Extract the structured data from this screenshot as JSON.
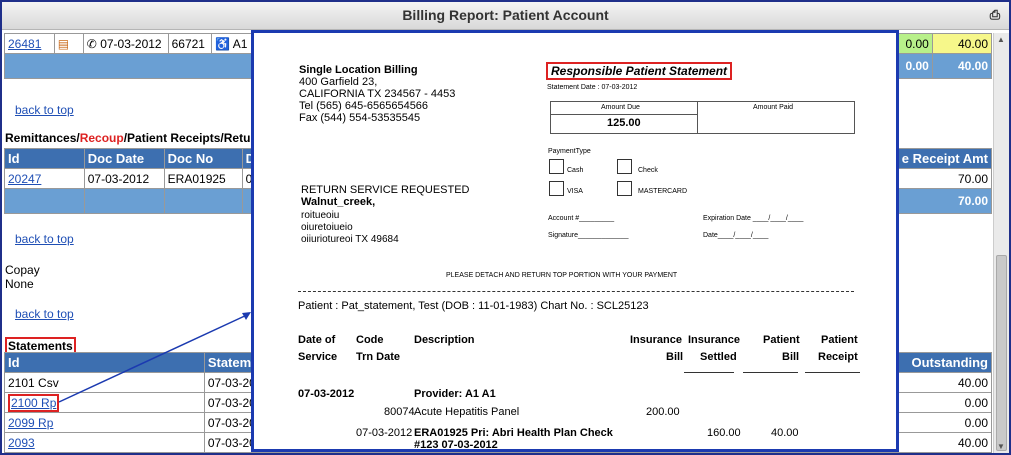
{
  "title": "Billing Report: Patient Account",
  "top_row": {
    "id": "26481",
    "date": "07-03-2012",
    "code": "66721",
    "provider_prefix": "A1",
    "green_val": "0.00",
    "yellow_val": "40.00",
    "total_left": "0.00",
    "total_right": "40.00"
  },
  "back_to_top": "back to top",
  "remittances": {
    "title_parts": [
      "Remittances/",
      "Recoup",
      "/Patient Receipts/Retur"
    ],
    "headers": [
      "Id",
      "Doc Date",
      "Doc No",
      "D",
      "e Receipt Amt"
    ],
    "row": {
      "id": "20247",
      "doc_date": "07-03-2012",
      "doc_no": "ERA01925",
      "d": "0",
      "amt": "70.00"
    },
    "total": "70.00"
  },
  "copay": {
    "title": "Copay",
    "value": "None"
  },
  "statements": {
    "title": "Statements",
    "headers": [
      "Id",
      "Statem",
      "Outstanding"
    ],
    "rows": [
      {
        "id": "2101 Csv",
        "date": "07-03-20",
        "outstanding": "40.00"
      },
      {
        "id": "2100 Rp",
        "date": "07-03-20",
        "outstanding": "0.00"
      },
      {
        "id": "2099 Rp",
        "date": "07-03-20",
        "outstanding": "0.00"
      },
      {
        "id": "2093",
        "date": "07-03-20",
        "outstanding": "40.00"
      }
    ]
  },
  "stmt": {
    "practice_name": "Single Location Billing",
    "addr1": "400 Garfield 23,",
    "addr2": "CALIFORNIA TX 234567 - 4453",
    "tel": "Tel    (565) 645-6565654566",
    "fax": "Fax   (544) 554-53535545",
    "heading": "Responsible Patient Statement",
    "statement_date": "Statement Date : 07-03-2012",
    "amount_due_label": "Amount Due",
    "amount_paid_label": "Amount Paid",
    "amount_due": "125.00",
    "payment_type": "PaymentType",
    "cash": "Cash",
    "check": "Check",
    "visa": "VISA",
    "mastercard": "MASTERCARD",
    "return_service": "RETURN SERVICE REQUESTED",
    "recipient": "Walnut_creek,",
    "r1": "roitueoiu",
    "r2": "oiuretoiueio",
    "r3": "oiiuriotureoi TX 49684",
    "account": "Account #_________",
    "signature": "Signature_____________",
    "expiration": "Expiration Date ____/____/____",
    "date_field": "Date____/____/____",
    "detach": "PLEASE DETACH AND RETURN TOP PORTION WITH YOUR PAYMENT",
    "patient_line": "Patient : Pat_statement, Test (DOB : 11-01-1983) Chart No. : SCL25123",
    "cols": {
      "c1a": "Date of",
      "c1b": "Service",
      "c2a": "Code",
      "c2b": "Trn Date",
      "c3": "Description",
      "c4a": "Insurance",
      "c4b": "Bill",
      "c5a": "Insurance",
      "c5b": "Settled",
      "c6a": "Patient",
      "c6b": "Bill",
      "c7a": "Patient",
      "c7b": "Receipt"
    },
    "svc_date": "07-03-2012",
    "provider": "Provider: A1 A1",
    "code": "80074",
    "desc": "Acute Hepatitis Panel",
    "ins_bill": "200.00",
    "trn_date": "07-03-2012",
    "era_line1": "ERA01925 Pri: Abri Health Plan Check",
    "era_line2": "#123 07-03-2012",
    "settled": "160.00",
    "pat_bill": "40.00"
  }
}
